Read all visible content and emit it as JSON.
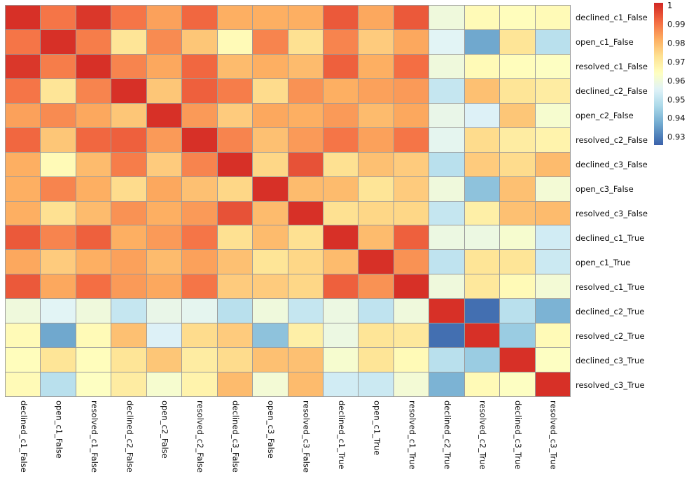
{
  "chart_data": {
    "type": "heatmap",
    "title": "",
    "xlabel": "",
    "ylabel": "",
    "labels": [
      "declined_c1_False",
      "open_c1_False",
      "resolved_c1_False",
      "declined_c2_False",
      "open_c2_False",
      "resolved_c2_False",
      "declined_c3_False",
      "open_c3_False",
      "resolved_c3_False",
      "declined_c1_True",
      "open_c1_True",
      "resolved_c1_True",
      "declined_c2_True",
      "resolved_c2_True",
      "declined_c3_True",
      "resolved_c3_True"
    ],
    "matrix": [
      [
        1.0,
        0.99,
        0.999,
        0.99,
        0.984,
        0.992,
        0.982,
        0.982,
        0.982,
        0.994,
        0.983,
        0.994,
        0.96,
        0.966,
        0.965,
        0.966
      ],
      [
        0.99,
        1.0,
        0.989,
        0.972,
        0.987,
        0.978,
        0.966,
        0.988,
        0.973,
        0.988,
        0.977,
        0.983,
        0.956,
        0.937,
        0.972,
        0.949
      ],
      [
        0.999,
        0.989,
        1.0,
        0.988,
        0.983,
        0.992,
        0.98,
        0.982,
        0.98,
        0.993,
        0.982,
        0.991,
        0.96,
        0.966,
        0.965,
        0.964
      ],
      [
        0.99,
        0.972,
        0.988,
        1.0,
        0.978,
        0.993,
        0.989,
        0.974,
        0.986,
        0.982,
        0.984,
        0.985,
        0.951,
        0.979,
        0.972,
        0.97
      ],
      [
        0.984,
        0.987,
        0.983,
        0.978,
        1.0,
        0.985,
        0.977,
        0.983,
        0.982,
        0.985,
        0.98,
        0.983,
        0.958,
        0.955,
        0.978,
        0.962
      ],
      [
        0.992,
        0.978,
        0.992,
        0.993,
        0.985,
        1.0,
        0.988,
        0.979,
        0.985,
        0.99,
        0.984,
        0.99,
        0.957,
        0.974,
        0.97,
        0.968
      ],
      [
        0.982,
        0.966,
        0.98,
        0.989,
        0.977,
        0.988,
        1.0,
        0.975,
        0.995,
        0.973,
        0.979,
        0.977,
        0.949,
        0.977,
        0.974,
        0.98
      ],
      [
        0.982,
        0.988,
        0.982,
        0.974,
        0.983,
        0.979,
        0.975,
        1.0,
        0.98,
        0.98,
        0.972,
        0.977,
        0.96,
        0.942,
        0.979,
        0.961
      ],
      [
        0.982,
        0.973,
        0.98,
        0.986,
        0.982,
        0.985,
        0.995,
        0.98,
        1.0,
        0.973,
        0.975,
        0.975,
        0.951,
        0.969,
        0.979,
        0.98
      ],
      [
        0.994,
        0.988,
        0.993,
        0.982,
        0.985,
        0.99,
        0.973,
        0.98,
        0.973,
        1.0,
        0.98,
        0.993,
        0.959,
        0.959,
        0.962,
        0.953
      ],
      [
        0.983,
        0.977,
        0.982,
        0.984,
        0.98,
        0.984,
        0.979,
        0.972,
        0.975,
        0.98,
        1.0,
        0.986,
        0.95,
        0.972,
        0.972,
        0.952
      ],
      [
        0.994,
        0.983,
        0.991,
        0.985,
        0.983,
        0.99,
        0.977,
        0.977,
        0.975,
        0.993,
        0.986,
        1.0,
        0.96,
        0.971,
        0.966,
        0.961
      ],
      [
        0.96,
        0.956,
        0.96,
        0.951,
        0.958,
        0.957,
        0.949,
        0.96,
        0.951,
        0.959,
        0.95,
        0.96,
        1.0,
        0.928,
        0.949,
        0.939
      ],
      [
        0.966,
        0.937,
        0.966,
        0.979,
        0.955,
        0.974,
        0.977,
        0.942,
        0.969,
        0.959,
        0.972,
        0.971,
        0.928,
        1.0,
        0.944,
        0.966
      ],
      [
        0.965,
        0.972,
        0.965,
        0.972,
        0.978,
        0.97,
        0.974,
        0.979,
        0.979,
        0.962,
        0.972,
        0.966,
        0.949,
        0.944,
        1.0,
        0.964
      ],
      [
        0.966,
        0.949,
        0.964,
        0.97,
        0.962,
        0.968,
        0.98,
        0.961,
        0.98,
        0.953,
        0.952,
        0.961,
        0.939,
        0.966,
        0.964,
        1.0
      ]
    ],
    "colormap": {
      "name": "RdYlBu_r",
      "domain": [
        0.92,
        1.0089
      ],
      "anchors": [
        "#313695",
        "#4575b4",
        "#74add1",
        "#abd9e9",
        "#e0f3f8",
        "#ffffbf",
        "#fee090",
        "#fdae61",
        "#f46d43",
        "#d73027",
        "#a50026"
      ]
    },
    "colorbar": {
      "tick_labels": [
        "1",
        "0.99",
        "0.98",
        "0.97",
        "0.96",
        "0.95",
        "0.94",
        "0.93"
      ],
      "tick_values": [
        1.0,
        0.99,
        0.98,
        0.97,
        0.96,
        0.95,
        0.94,
        0.93
      ],
      "legend_position": "right"
    },
    "grid_on": true,
    "grid_color": "#9b9b9b",
    "text_color": "#111111",
    "background": "#ffffff"
  }
}
